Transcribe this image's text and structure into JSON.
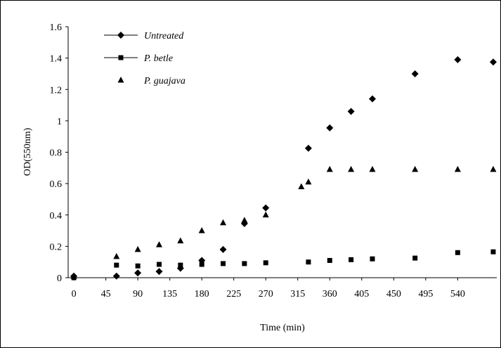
{
  "chart_data": {
    "type": "scatter",
    "xlabel": "Time (min)",
    "ylabel": "OD(550nm)",
    "xlim": [
      -8,
      595
    ],
    "ylim": [
      0,
      1.6
    ],
    "xticks": [
      0,
      45,
      90,
      135,
      180,
      225,
      270,
      315,
      360,
      405,
      450,
      495,
      540
    ],
    "yticks": [
      "0",
      "0.2",
      "0.4",
      "0.6",
      "0.8",
      "1",
      "1.2",
      "1.4",
      "1.6"
    ],
    "legend_position": "top-left",
    "series": [
      {
        "name": "Untreated",
        "marker": "diamond",
        "x": [
          0,
          60,
          90,
          120,
          150,
          180,
          210,
          240,
          270,
          330,
          360,
          390,
          420,
          480,
          540,
          590
        ],
        "y": [
          0.01,
          0.01,
          0.03,
          0.04,
          0.06,
          0.11,
          0.18,
          0.345,
          0.445,
          0.825,
          0.955,
          1.06,
          1.14,
          1.3,
          1.39,
          1.375
        ]
      },
      {
        "name": "P. betle",
        "marker": "square",
        "x": [
          0,
          60,
          90,
          120,
          150,
          180,
          210,
          240,
          270,
          330,
          360,
          390,
          420,
          480,
          540,
          590
        ],
        "y": [
          0.0,
          0.08,
          0.075,
          0.085,
          0.08,
          0.085,
          0.09,
          0.09,
          0.095,
          0.1,
          0.11,
          0.115,
          0.12,
          0.125,
          0.16,
          0.165
        ]
      },
      {
        "name": "P. guajava",
        "marker": "triangle",
        "x": [
          0,
          60,
          90,
          120,
          150,
          180,
          210,
          240,
          270,
          320,
          330,
          360,
          390,
          420,
          480,
          540,
          590
        ],
        "y": [
          0.01,
          0.135,
          0.18,
          0.21,
          0.235,
          0.3,
          0.35,
          0.365,
          0.4,
          0.58,
          0.61,
          0.69,
          0.69,
          0.69,
          0.69,
          0.69,
          0.69
        ]
      }
    ]
  }
}
